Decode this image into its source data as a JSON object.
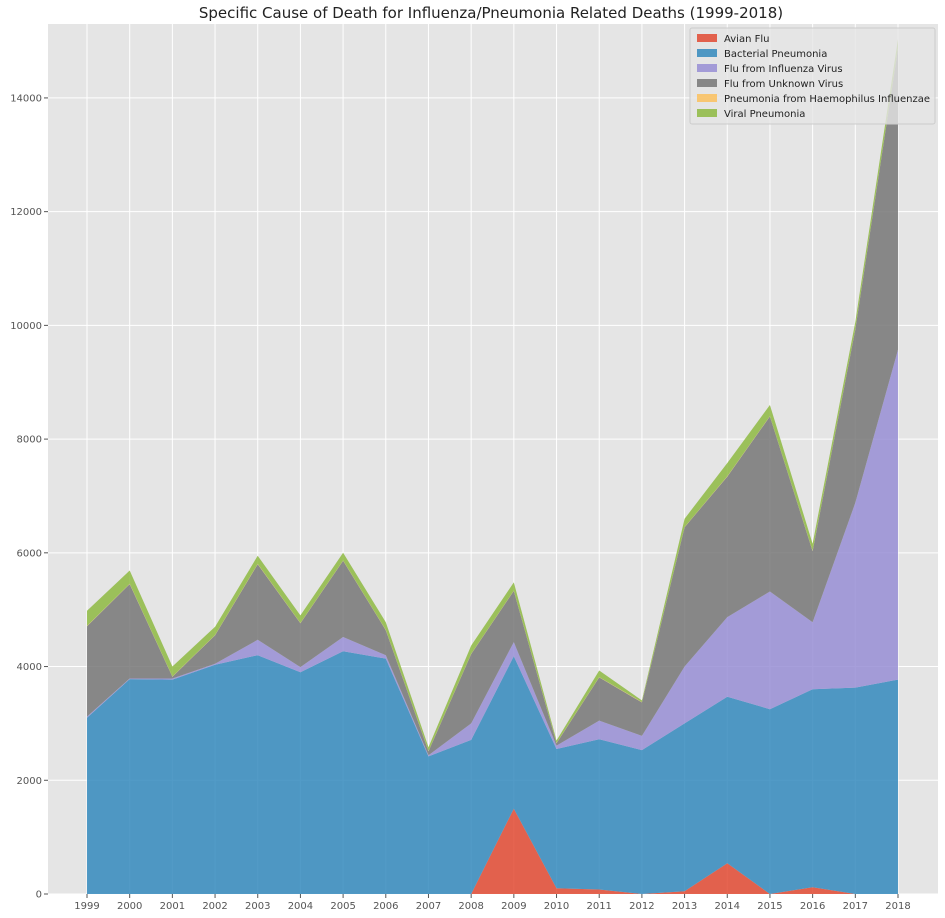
{
  "chart_data": {
    "type": "area",
    "stacked": true,
    "title": "Specific Cause of Death for Influenza/Pneumonia Related Deaths (1999-2018)",
    "xlabel": "",
    "ylabel": "",
    "x": [
      "1999",
      "2000",
      "2001",
      "2002",
      "2003",
      "2004",
      "2005",
      "2006",
      "2007",
      "2008",
      "2009",
      "2010",
      "2011",
      "2012",
      "2013",
      "2014",
      "2015",
      "2016",
      "2017",
      "2018"
    ],
    "ylim": [
      0,
      15300
    ],
    "yticks": [
      0,
      2000,
      4000,
      6000,
      8000,
      10000,
      12000,
      14000
    ],
    "grid": true,
    "legend_position": "top-right",
    "series": [
      {
        "name": "Avian Flu",
        "color": "#e24a33",
        "values": [
          0,
          0,
          0,
          0,
          0,
          0,
          0,
          0,
          0,
          0,
          1500,
          100,
          80,
          0,
          50,
          540,
          0,
          120,
          0,
          0
        ]
      },
      {
        "name": "Bacterial Pneumonia",
        "color": "#348abd",
        "values": [
          3100,
          3780,
          3770,
          4030,
          4200,
          3900,
          4270,
          4140,
          2420,
          2710,
          2680,
          2450,
          2640,
          2530,
          2950,
          2930,
          3250,
          3480,
          3630,
          3770
        ]
      },
      {
        "name": "Flu from Influenza Virus",
        "color": "#988ed5",
        "values": [
          20,
          10,
          20,
          20,
          270,
          90,
          250,
          60,
          20,
          290,
          250,
          60,
          330,
          250,
          1000,
          1400,
          2070,
          1180,
          3250,
          5800
        ]
      },
      {
        "name": "Flu from Unknown Virus",
        "color": "#777777",
        "values": [
          1590,
          1660,
          30,
          500,
          1330,
          770,
          1340,
          440,
          70,
          1220,
          900,
          40,
          760,
          590,
          2450,
          2470,
          3080,
          1250,
          3050,
          5300
        ]
      },
      {
        "name": "Pneumonia from Haemophilus Influenzae",
        "color": "#fbc15e",
        "values": [
          5,
          5,
          5,
          5,
          5,
          5,
          5,
          5,
          5,
          5,
          5,
          5,
          5,
          5,
          5,
          5,
          5,
          5,
          5,
          5
        ]
      },
      {
        "name": "Viral Pneumonia",
        "color": "#8eba42",
        "values": [
          265,
          235,
          175,
          145,
          145,
          135,
          135,
          135,
          65,
          145,
          145,
          45,
          115,
          30,
          145,
          235,
          195,
          125,
          125,
          160
        ]
      }
    ]
  }
}
